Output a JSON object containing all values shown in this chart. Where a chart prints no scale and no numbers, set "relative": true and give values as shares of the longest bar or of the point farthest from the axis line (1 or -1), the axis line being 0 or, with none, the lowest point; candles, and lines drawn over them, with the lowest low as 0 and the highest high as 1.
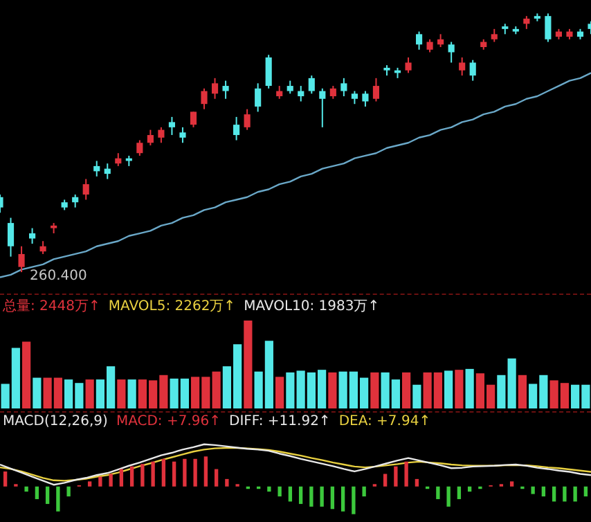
{
  "chart_data": [
    {
      "type": "candlestick",
      "relative": true,
      "legend": false,
      "categories": [
        null,
        null,
        null,
        null,
        null,
        null,
        null,
        null,
        null,
        null,
        null,
        null,
        null,
        null,
        null,
        null,
        null,
        null,
        null,
        null,
        null,
        null,
        null,
        null,
        null,
        null,
        null,
        null,
        null,
        null,
        null,
        null,
        null,
        null,
        null,
        null,
        null,
        null,
        null,
        null,
        null,
        null,
        null,
        null,
        null,
        null,
        null,
        null,
        null,
        null,
        null,
        null,
        null,
        null,
        null,
        null
      ],
      "ohlc": [
        [
          0.29,
          0.3,
          0.23,
          0.25
        ],
        [
          0.19,
          0.21,
          0.06,
          0.1
        ],
        [
          0.02,
          0.1,
          0,
          0.07
        ],
        [
          0.15,
          0.17,
          0.11,
          0.13
        ],
        [
          0.08,
          0.12,
          0.07,
          0.1
        ],
        [
          0.17,
          0.19,
          0.15,
          0.18
        ],
        [
          0.27,
          0.28,
          0.24,
          0.25
        ],
        [
          0.29,
          0.3,
          0.25,
          0.27
        ],
        [
          0.3,
          0.36,
          0.28,
          0.34
        ],
        [
          0.41,
          0.43,
          0.37,
          0.39
        ],
        [
          0.4,
          0.42,
          0.36,
          0.38
        ],
        [
          0.42,
          0.46,
          0.41,
          0.44
        ],
        [
          0.44,
          0.45,
          0.41,
          0.43
        ],
        [
          0.46,
          0.51,
          0.45,
          0.5
        ],
        [
          0.5,
          0.55,
          0.49,
          0.53
        ],
        [
          0.52,
          0.56,
          0.5,
          0.55
        ],
        [
          0.58,
          0.6,
          0.53,
          0.56
        ],
        [
          0.54,
          0.56,
          0.5,
          0.52
        ],
        [
          0.57,
          0.62,
          0.56,
          0.62
        ],
        [
          0.65,
          0.71,
          0.63,
          0.7
        ],
        [
          0.69,
          0.75,
          0.67,
          0.73
        ],
        [
          0.72,
          0.74,
          0.67,
          0.7
        ],
        [
          0.57,
          0.6,
          0.51,
          0.53
        ],
        [
          0.56,
          0.63,
          0.55,
          0.61
        ],
        [
          0.71,
          0.73,
          0.62,
          0.64
        ],
        [
          0.83,
          0.84,
          0.71,
          0.72
        ],
        [
          0.68,
          0.72,
          0.67,
          0.7
        ],
        [
          0.72,
          0.74,
          0.69,
          0.7
        ],
        [
          0.7,
          0.72,
          0.66,
          0.68
        ],
        [
          0.75,
          0.76,
          0.69,
          0.7
        ],
        [
          0.7,
          0.71,
          0.56,
          0.67
        ],
        [
          0.68,
          0.72,
          0.67,
          0.71
        ],
        [
          0.73,
          0.75,
          0.68,
          0.7
        ],
        [
          0.69,
          0.7,
          0.65,
          0.67
        ],
        [
          0.69,
          0.7,
          0.64,
          0.66
        ],
        [
          0.67,
          0.75,
          0.66,
          0.72
        ],
        [
          0.79,
          0.8,
          0.76,
          0.78
        ],
        [
          0.78,
          0.79,
          0.75,
          0.77
        ],
        [
          0.78,
          0.83,
          0.77,
          0.81
        ],
        [
          0.92,
          0.93,
          0.86,
          0.88
        ],
        [
          0.86,
          0.9,
          0.85,
          0.89
        ],
        [
          0.88,
          0.92,
          0.87,
          0.9
        ],
        [
          0.88,
          0.89,
          0.81,
          0.85
        ],
        [
          0.78,
          0.83,
          0.76,
          0.81
        ],
        [
          0.81,
          0.82,
          0.74,
          0.76
        ],
        [
          0.87,
          0.9,
          0.86,
          0.89
        ],
        [
          0.9,
          0.94,
          0.89,
          0.92
        ],
        [
          0.95,
          0.96,
          0.92,
          0.94
        ],
        [
          0.94,
          0.95,
          0.92,
          0.93
        ],
        [
          0.96,
          0.99,
          0.94,
          0.98
        ],
        [
          0.99,
          1.0,
          0.97,
          0.98
        ],
        [
          0.99,
          1.0,
          0.89,
          0.9
        ],
        [
          0.91,
          0.94,
          0.9,
          0.93
        ],
        [
          0.91,
          0.94,
          0.9,
          0.93
        ],
        [
          0.93,
          0.94,
          0.9,
          0.91
        ],
        [
          0.96,
          0.97,
          0.92,
          0.94
        ]
      ],
      "colors": [
        "#54e8e8",
        "#54e8e8",
        "#e0323c",
        "#54e8e8",
        "#e0323c",
        "#e0323c",
        "#54e8e8",
        "#54e8e8",
        "#e0323c",
        "#54e8e8",
        "#54e8e8",
        "#e0323c",
        "#54e8e8",
        "#e0323c",
        "#e0323c",
        "#e0323c",
        "#54e8e8",
        "#54e8e8",
        "#e0323c",
        "#e0323c",
        "#e0323c",
        "#54e8e8",
        "#54e8e8",
        "#e0323c",
        "#54e8e8",
        "#54e8e8",
        "#e0323c",
        "#54e8e8",
        "#54e8e8",
        "#54e8e8",
        "#54e8e8",
        "#e0323c",
        "#54e8e8",
        "#54e8e8",
        "#54e8e8",
        "#e0323c",
        "#54e8e8",
        "#54e8e8",
        "#e0323c",
        "#54e8e8",
        "#e0323c",
        "#e0323c",
        "#54e8e8",
        "#e0323c",
        "#54e8e8",
        "#e0323c",
        "#e0323c",
        "#54e8e8",
        "#54e8e8",
        "#e0323c",
        "#54e8e8",
        "#54e8e8",
        "#e0323c",
        "#e0323c",
        "#54e8e8",
        "#54e8e8"
      ],
      "series": [
        {
          "type": "line",
          "color": "#6aa8c8",
          "values": [
            -0.02,
            -0.01,
            0.01,
            0.02,
            0.03,
            0.05,
            0.06,
            0.07,
            0.08,
            0.1,
            0.11,
            0.12,
            0.14,
            0.15,
            0.16,
            0.18,
            0.19,
            0.21,
            0.22,
            0.24,
            0.25,
            0.27,
            0.28,
            0.29,
            0.31,
            0.32,
            0.34,
            0.35,
            0.37,
            0.38,
            0.4,
            0.41,
            0.42,
            0.44,
            0.45,
            0.46,
            0.48,
            0.49,
            0.5,
            0.52,
            0.53,
            0.55,
            0.56,
            0.58,
            0.59,
            0.61,
            0.62,
            0.64,
            0.65,
            0.67,
            0.68,
            0.7,
            0.72,
            0.74,
            0.75,
            0.77
          ]
        }
      ],
      "annotations": [
        "260.400"
      ]
    },
    {
      "type": "bar",
      "relative": true,
      "legend": false,
      "categories": [
        null,
        null,
        null,
        null,
        null,
        null,
        null,
        null,
        null,
        null,
        null,
        null,
        null,
        null,
        null,
        null,
        null,
        null,
        null,
        null,
        null,
        null,
        null,
        null,
        null,
        null,
        null,
        null,
        null,
        null,
        null,
        null,
        null,
        null,
        null,
        null,
        null,
        null,
        null,
        null,
        null,
        null,
        null,
        null,
        null,
        null,
        null,
        null,
        null,
        null,
        null,
        null,
        null,
        null,
        null,
        null
      ],
      "values": [
        0.28,
        0.69,
        0.76,
        0.35,
        0.35,
        0.35,
        0.33,
        0.29,
        0.33,
        0.33,
        0.48,
        0.33,
        0.33,
        0.33,
        0.32,
        0.38,
        0.34,
        0.34,
        0.36,
        0.36,
        0.42,
        0.48,
        0.73,
        1.0,
        0.42,
        0.77,
        0.36,
        0.41,
        0.43,
        0.41,
        0.44,
        0.41,
        0.42,
        0.42,
        0.35,
        0.41,
        0.41,
        0.33,
        0.41,
        0.27,
        0.41,
        0.41,
        0.43,
        0.44,
        0.45,
        0.4,
        0.27,
        0.38,
        0.57,
        0.38,
        0.28,
        0.38,
        0.32,
        0.29,
        0.27,
        0.27
      ],
      "colors": [
        "#54e8e8",
        "#54e8e8",
        "#e0323c",
        "#54e8e8",
        "#e0323c",
        "#e0323c",
        "#54e8e8",
        "#54e8e8",
        "#e0323c",
        "#54e8e8",
        "#54e8e8",
        "#e0323c",
        "#54e8e8",
        "#e0323c",
        "#e0323c",
        "#e0323c",
        "#54e8e8",
        "#54e8e8",
        "#e0323c",
        "#e0323c",
        "#e0323c",
        "#54e8e8",
        "#54e8e8",
        "#e0323c",
        "#54e8e8",
        "#54e8e8",
        "#e0323c",
        "#54e8e8",
        "#54e8e8",
        "#54e8e8",
        "#54e8e8",
        "#e0323c",
        "#54e8e8",
        "#54e8e8",
        "#54e8e8",
        "#e0323c",
        "#54e8e8",
        "#54e8e8",
        "#e0323c",
        "#54e8e8",
        "#e0323c",
        "#e0323c",
        "#54e8e8",
        "#e0323c",
        "#54e8e8",
        "#e0323c",
        "#e0323c",
        "#54e8e8",
        "#54e8e8",
        "#e0323c",
        "#54e8e8",
        "#54e8e8",
        "#e0323c",
        "#e0323c",
        "#54e8e8",
        "#54e8e8"
      ],
      "annotations": [
        "总量: 2448万↑",
        "MAVOL5: 2262万↑",
        "MAVOL10: 1983万↑"
      ]
    },
    {
      "type": "line",
      "relative": true,
      "legend": false,
      "categories": [
        null,
        null,
        null,
        null,
        null,
        null,
        null,
        null,
        null,
        null,
        null,
        null,
        null,
        null,
        null,
        null,
        null,
        null,
        null,
        null,
        null,
        null,
        null,
        null,
        null,
        null,
        null,
        null,
        null,
        null,
        null,
        null,
        null,
        null,
        null,
        null,
        null,
        null,
        null,
        null,
        null,
        null,
        null,
        null,
        null,
        null,
        null,
        null,
        null,
        null,
        null,
        null,
        null,
        null,
        null,
        null
      ],
      "series": [
        {
          "type": "line",
          "color": "#e8e8e8",
          "values": [
            0.5,
            0.4,
            0.3,
            0.2,
            0.1,
            0,
            0.05,
            0.12,
            0.17,
            0.24,
            0.29,
            0.38,
            0.47,
            0.55,
            0.64,
            0.73,
            0.79,
            0.87,
            0.93,
            1.0,
            0.98,
            0.95,
            0.92,
            0.89,
            0.87,
            0.84,
            0.77,
            0.71,
            0.64,
            0.58,
            0.52,
            0.46,
            0.39,
            0.33,
            0.39,
            0.46,
            0.53,
            0.6,
            0.66,
            0.6,
            0.54,
            0.48,
            0.41,
            0.42,
            0.45,
            0.46,
            0.47,
            0.49,
            0.5,
            0.47,
            0.42,
            0.39,
            0.35,
            0.32,
            0.27,
            0.24
          ]
        },
        {
          "type": "line",
          "color": "#e8d040",
          "values": [
            0.43,
            0.39,
            0.33,
            0.25,
            0.17,
            0.11,
            0.1,
            0.12,
            0.15,
            0.2,
            0.24,
            0.3,
            0.38,
            0.46,
            0.53,
            0.61,
            0.68,
            0.75,
            0.82,
            0.87,
            0.9,
            0.91,
            0.91,
            0.9,
            0.88,
            0.86,
            0.82,
            0.77,
            0.72,
            0.66,
            0.61,
            0.55,
            0.5,
            0.45,
            0.43,
            0.45,
            0.48,
            0.51,
            0.55,
            0.57,
            0.55,
            0.53,
            0.5,
            0.48,
            0.47,
            0.47,
            0.47,
            0.48,
            0.48,
            0.48,
            0.46,
            0.43,
            0.41,
            0.38,
            0.35,
            0.32
          ]
        }
      ],
      "annotations": [
        "MACD(12,26,9)",
        "MACD: +7.96↑",
        "DIFF: +11.92↑",
        "DEA: +7.94↑"
      ]
    },
    {
      "type": "bar",
      "relative": true,
      "legend": false,
      "categories": [
        null,
        null,
        null,
        null,
        null,
        null,
        null,
        null,
        null,
        null,
        null,
        null,
        null,
        null,
        null,
        null,
        null,
        null,
        null,
        null,
        null,
        null,
        null,
        null,
        null,
        null,
        null,
        null,
        null,
        null,
        null,
        null,
        null,
        null,
        null,
        null,
        null,
        null,
        null,
        null,
        null,
        null,
        null,
        null,
        null,
        null,
        null,
        null,
        null,
        null,
        null,
        null,
        null,
        null,
        null,
        null
      ],
      "colors": [
        "#e0323c",
        "#e0323c",
        "#3cc83c",
        "#3cc83c",
        "#3cc83c",
        "#3cc83c",
        "#3cc83c",
        "#e0323c",
        "#e0323c",
        "#e0323c",
        "#e0323c",
        "#e0323c",
        "#e0323c",
        "#e0323c",
        "#e0323c",
        "#e0323c",
        "#e0323c",
        "#e0323c",
        "#e0323c",
        "#e0323c",
        "#e0323c",
        "#e0323c",
        "#e0323c",
        "#3cc83c",
        "#3cc83c",
        "#3cc83c",
        "#3cc83c",
        "#3cc83c",
        "#3cc83c",
        "#3cc83c",
        "#3cc83c",
        "#3cc83c",
        "#3cc83c",
        "#3cc83c",
        "#3cc83c",
        "#e0323c",
        "#e0323c",
        "#e0323c",
        "#e0323c",
        "#e0323c",
        "#3cc83c",
        "#3cc83c",
        "#3cc83c",
        "#3cc83c",
        "#3cc83c",
        "#3cc83c",
        "#e0323c",
        "#e0323c",
        "#e0323c",
        "#3cc83c",
        "#3cc83c",
        "#3cc83c",
        "#3cc83c",
        "#3cc83c",
        "#3cc83c",
        "#3cc83c"
      ],
      "values": [
        0.5,
        0.08,
        -0.17,
        -0.42,
        -0.58,
        -0.83,
        -0.33,
        0.04,
        0.17,
        0.33,
        0.42,
        0.58,
        0.67,
        0.75,
        0.83,
        0.92,
        0.83,
        0.92,
        0.92,
        1,
        0.58,
        0.25,
        0.08,
        -0.08,
        -0.08,
        -0.17,
        -0.33,
        -0.5,
        -0.58,
        -0.67,
        -0.67,
        -0.75,
        -0.83,
        -0.92,
        -0.33,
        0.08,
        0.42,
        0.67,
        0.83,
        0.25,
        -0.08,
        -0.42,
        -0.67,
        -0.42,
        -0.17,
        -0.08,
        0.04,
        0.08,
        0.17,
        -0.08,
        -0.25,
        -0.33,
        -0.5,
        -0.5,
        -0.5,
        -0.33
      ]
    }
  ]
}
